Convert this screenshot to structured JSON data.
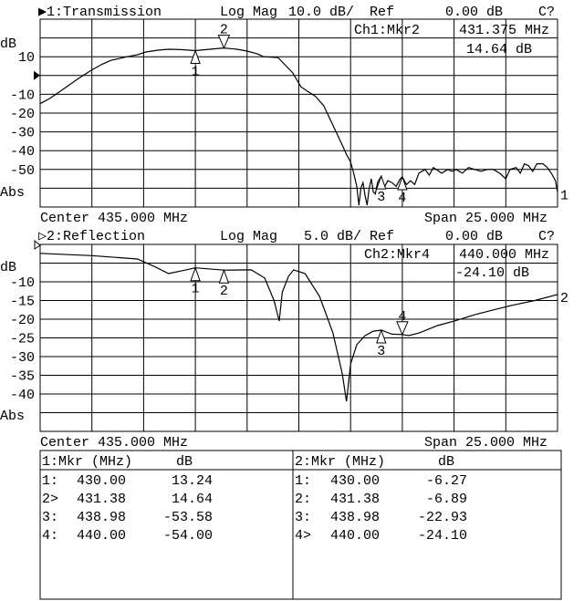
{
  "chart_data": [
    {
      "type": "line",
      "channel_label": "▶1:Transmission",
      "format": "Log Mag",
      "scale": "10.0 dB/",
      "ref_label": "Ref",
      "ref_value": "0.00 dB",
      "status": "C?",
      "ylabel": "dB",
      "abs_label": "Abs",
      "center": "Center 435.000 MHz",
      "span": "Span 25.000 MHz",
      "trace_end_label": "1",
      "xlim": [
        422.5,
        447.5
      ],
      "ylim": [
        -70,
        30
      ],
      "ref_level": 0,
      "grid": true,
      "ytick_labels": [
        {
          "value": 10,
          "label": "10"
        },
        {
          "value": -10,
          "label": "-10"
        },
        {
          "value": -20,
          "label": "-20"
        },
        {
          "value": -30,
          "label": "-30"
        },
        {
          "value": -40,
          "label": "-40"
        },
        {
          "value": -50,
          "label": "-50"
        }
      ],
      "readout": {
        "marker": "Ch1:Mkr2",
        "freq": "431.375 MHz",
        "value": "14.64 dB"
      },
      "x": [
        422.5,
        423.0,
        423.65,
        424.3,
        425.0,
        425.5,
        425.9,
        426.3,
        426.7,
        427.2,
        427.6,
        428.2,
        428.7,
        429.3,
        430.0,
        430.7,
        431.38,
        432.0,
        432.5,
        433.0,
        433.3,
        434.0,
        434.3,
        434.7,
        435.1,
        435.5,
        435.8,
        436.2,
        436.5,
        436.8,
        437.1,
        437.3,
        437.5,
        437.65,
        437.8,
        437.9,
        438.0,
        438.1,
        438.2,
        438.3,
        438.4,
        438.5,
        438.6,
        438.7,
        438.8,
        438.98,
        439.1,
        439.3,
        439.5,
        439.7,
        439.9,
        440.0,
        440.2,
        440.4,
        440.6,
        440.8,
        441.1,
        441.3,
        441.5,
        441.7,
        441.9,
        442.2,
        442.4,
        442.6,
        442.9,
        443.2,
        443.5,
        443.8,
        444.1,
        444.4,
        444.7,
        445.0,
        445.2,
        445.5,
        445.7,
        445.9,
        446.1,
        446.3,
        446.5,
        446.8,
        447.0,
        447.2,
        447.4,
        447.5
      ],
      "y": [
        -15,
        -12,
        -7,
        -2,
        3,
        6,
        8,
        9,
        10,
        11,
        12.5,
        13.5,
        14,
        13.8,
        13.24,
        14,
        14.64,
        14,
        13,
        11.5,
        10,
        9.5,
        6,
        1.5,
        -6,
        -9,
        -11,
        -16,
        -23,
        -30,
        -37,
        -42,
        -46,
        -52,
        -59,
        -69,
        -60,
        -57,
        -64,
        -69,
        -60,
        -55,
        -62,
        -63,
        -57,
        -53.58,
        -60,
        -56,
        -57,
        -59,
        -55,
        -54,
        -58,
        -56,
        -58,
        -52,
        -50,
        -53,
        -49,
        -50.5,
        -52,
        -50,
        -51,
        -50,
        -52,
        -49,
        -50,
        -51,
        -50,
        -50,
        -52,
        -55,
        -50,
        -49,
        -52,
        -47,
        -48,
        -51,
        -47,
        -47,
        -49,
        -52,
        -56,
        -62
      ]
    },
    {
      "type": "line",
      "channel_label": "▷2:Reflection",
      "format": "Log Mag",
      "scale": "5.0 dB/",
      "ref_label": "Ref",
      "ref_value": "0.00 dB",
      "status": "C?",
      "ylabel": "dB",
      "abs_label": "Abs",
      "center": "Center 435.000 MHz",
      "span": "Span 25.000 MHz",
      "trace_end_label": "2",
      "xlim": [
        422.5,
        447.5
      ],
      "ylim": [
        -50,
        0
      ],
      "ref_level": 0,
      "grid": true,
      "ytick_labels": [
        {
          "value": -10,
          "label": "-10"
        },
        {
          "value": -15,
          "label": "-15"
        },
        {
          "value": -20,
          "label": "-20"
        },
        {
          "value": -25,
          "label": "-25"
        },
        {
          "value": -30,
          "label": "-30"
        },
        {
          "value": -35,
          "label": "-35"
        },
        {
          "value": -40,
          "label": "-40"
        }
      ],
      "readout": {
        "marker": "Ch2:Mkr4",
        "freq": "440.000 MHz",
        "value": "-24.10 dB"
      },
      "x": [
        422.5,
        425.0,
        427.2,
        428.05,
        428.7,
        429.4,
        430.0,
        431.38,
        432.7,
        433.35,
        433.8,
        434.05,
        434.2,
        434.5,
        434.75,
        435.3,
        436.0,
        436.65,
        437.1,
        437.3,
        437.5,
        437.8,
        438.2,
        438.6,
        438.98,
        439.5,
        440.0,
        440.3,
        440.8,
        441.7,
        442.5,
        443.5,
        444.4,
        445.3,
        446.4,
        447.5
      ],
      "y": [
        -2.4,
        -3,
        -3.9,
        -6,
        -7.8,
        -7,
        -6.27,
        -6.89,
        -6.8,
        -9,
        -15,
        -20.5,
        -12.7,
        -8.5,
        -6.8,
        -7.8,
        -13.9,
        -23.7,
        -34.6,
        -42,
        -32,
        -26.8,
        -24.4,
        -23.2,
        -22.93,
        -24,
        -24.1,
        -24.4,
        -23.7,
        -21.7,
        -20.5,
        -18.8,
        -17.5,
        -16.3,
        -15,
        -13.4
      ]
    }
  ],
  "markers": {
    "ch1": [
      {
        "id": "1",
        "freq": 430.0,
        "db": 13.24,
        "style": "up"
      },
      {
        "id": "2",
        "freq": 431.38,
        "db": 14.64,
        "style": "down",
        "active": true
      },
      {
        "id": "3",
        "freq": 438.98,
        "db": -53.58,
        "style": "up"
      },
      {
        "id": "4",
        "freq": 440.0,
        "db": -54.0,
        "style": "up"
      }
    ],
    "ch2": [
      {
        "id": "1",
        "freq": 430.0,
        "db": -6.27,
        "style": "up"
      },
      {
        "id": "2",
        "freq": 431.38,
        "db": -6.89,
        "style": "up"
      },
      {
        "id": "3",
        "freq": 438.98,
        "db": -22.93,
        "style": "up"
      },
      {
        "id": "4",
        "freq": 440.0,
        "db": -24.1,
        "style": "down",
        "active": true
      }
    ]
  },
  "marker_table": {
    "ch1": {
      "header": "1:Mkr (MHz)",
      "unit": "dB",
      "rows": [
        {
          "id": "1:",
          "freq": "430.00",
          "db": "13.24"
        },
        {
          "id": "2>",
          "freq": "431.38",
          "db": "14.64"
        },
        {
          "id": "3:",
          "freq": "438.98",
          "db": "-53.58"
        },
        {
          "id": "4:",
          "freq": "440.00",
          "db": "-54.00"
        }
      ]
    },
    "ch2": {
      "header": "2:Mkr (MHz)",
      "unit": "dB",
      "rows": [
        {
          "id": "1:",
          "freq": "430.00",
          "db": "-6.27"
        },
        {
          "id": "2:",
          "freq": "431.38",
          "db": "-6.89"
        },
        {
          "id": "3:",
          "freq": "438.98",
          "db": "-22.93"
        },
        {
          "id": "4>",
          "freq": "440.00",
          "db": "-24.10"
        }
      ]
    }
  }
}
